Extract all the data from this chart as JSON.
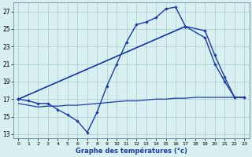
{
  "xlabel": "Graphe des températures (°c)",
  "background_color": "#d8f0f0",
  "grid_color": "#aacccc",
  "line_color": "#1a3aad",
  "ylim": [
    12.5,
    28.0
  ],
  "xlim": [
    -0.5,
    23.5
  ],
  "yticks": [
    13,
    15,
    17,
    19,
    21,
    23,
    25,
    27
  ],
  "xticks": [
    0,
    1,
    2,
    3,
    4,
    5,
    6,
    7,
    8,
    9,
    10,
    11,
    12,
    13,
    14,
    15,
    16,
    17,
    18,
    19,
    20,
    21,
    22,
    23
  ],
  "line1_x": [
    0,
    1,
    2,
    3,
    4,
    5,
    6,
    7,
    8,
    9,
    10,
    11,
    12,
    13,
    14,
    15,
    16,
    17
  ],
  "line1_y": [
    17.0,
    16.8,
    16.5,
    16.5,
    15.8,
    15.2,
    14.5,
    13.2,
    15.5,
    18.5,
    21.0,
    23.5,
    25.5,
    25.8,
    26.3,
    27.3,
    27.5,
    25.3
  ],
  "line2_x": [
    0,
    17,
    19,
    20,
    21,
    22,
    23
  ],
  "line2_y": [
    17.0,
    25.3,
    24.8,
    22.0,
    19.5,
    17.2,
    17.2
  ],
  "line3_x": [
    0,
    17,
    19,
    20,
    21,
    22,
    23
  ],
  "line3_y": [
    17.0,
    25.3,
    24.0,
    21.0,
    19.0,
    17.2,
    17.2
  ],
  "line4_x": [
    0,
    1,
    2,
    3,
    4,
    5,
    6,
    7,
    8,
    9,
    10,
    11,
    12,
    13,
    14,
    15,
    16,
    17,
    18,
    19,
    20,
    21,
    22,
    23
  ],
  "line4_y": [
    16.5,
    16.3,
    16.1,
    16.2,
    16.2,
    16.3,
    16.3,
    16.4,
    16.5,
    16.6,
    16.7,
    16.8,
    16.8,
    16.9,
    17.0,
    17.0,
    17.1,
    17.1,
    17.2,
    17.2,
    17.2,
    17.2,
    17.2,
    17.2
  ]
}
